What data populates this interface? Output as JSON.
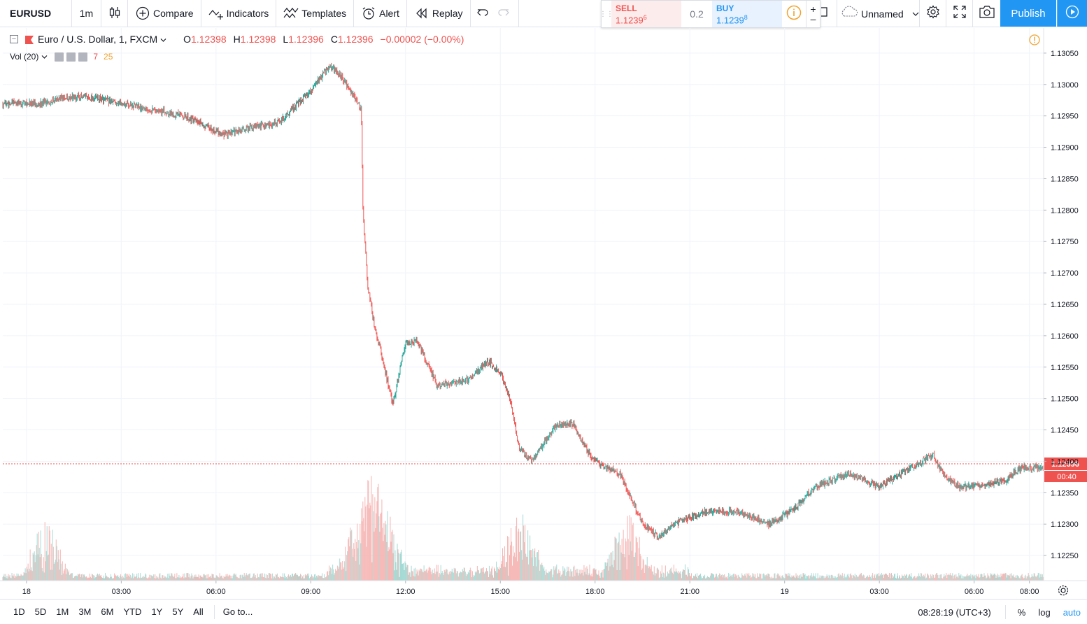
{
  "toolbar": {
    "symbol": "EURUSD",
    "interval": "1m",
    "compare": "Compare",
    "indicators": "Indicators",
    "templates": "Templates",
    "alert": "Alert",
    "replay": "Replay",
    "layout_name": "Unnamed",
    "publish": "Publish"
  },
  "trade": {
    "sell_label": "SELL",
    "sell_price_main": "1.1239",
    "sell_price_sup": "6",
    "spread": "0.2",
    "buy_label": "BUY",
    "buy_price_main": "1.1239",
    "buy_price_sup": "8",
    "plus": "+",
    "minus": "–"
  },
  "legend": {
    "title": "Euro / U.S. Dollar, 1, FXCM",
    "o_label": "O",
    "o": "1.12398",
    "h_label": "H",
    "h": "1.12398",
    "l_label": "L",
    "l": "1.12396",
    "c_label": "C",
    "c": "1.12396",
    "change": "−0.00002 (−0.00%)",
    "vol_label": "Vol (20)",
    "vol_value1": "7",
    "vol_value2": "25"
  },
  "bottom": {
    "ranges": [
      "1D",
      "5D",
      "1M",
      "3M",
      "6M",
      "YTD",
      "1Y",
      "5Y",
      "All"
    ],
    "goto": "Go to...",
    "clock": "08:28:19 (UTC+3)",
    "percent": "%",
    "log": "log",
    "auto": "auto"
  },
  "colors": {
    "up": "#26a69a",
    "down": "#ef5350",
    "grid": "#f0f3fa",
    "last_price": "#ef5350",
    "accent": "#2196f3"
  },
  "chart_data": {
    "type": "candlestick",
    "symbol": "EURUSD",
    "title": "Euro / U.S. Dollar, 1, FXCM",
    "interval": "1m",
    "ylim": [
      1.1221,
      1.1309
    ],
    "y_ticks": [
      "1.13050",
      "1.13000",
      "1.12950",
      "1.12900",
      "1.12850",
      "1.12800",
      "1.12750",
      "1.12700",
      "1.12650",
      "1.12600",
      "1.12550",
      "1.12500",
      "1.12450",
      "1.12400",
      "1.12350",
      "1.12300",
      "1.12250"
    ],
    "x_ticks": [
      "18",
      "03:00",
      "06:00",
      "09:00",
      "12:00",
      "15:00",
      "18:00",
      "21:00",
      "19",
      "03:00",
      "06:00",
      "08:00"
    ],
    "x_tick_hours": [
      0,
      3,
      6,
      9,
      12,
      15,
      18,
      21,
      24,
      27,
      30,
      31.75
    ],
    "x_range_hours": [
      -0.75,
      32.2
    ],
    "last_price": "1.12396",
    "last_price_value": 1.12396,
    "countdown": "00:40",
    "price_path_hours": [
      -0.75,
      -0.05,
      0.5,
      1.2,
      2.0,
      3.0,
      4.0,
      5.0,
      5.8,
      6.3,
      7.0,
      8.0,
      9.0,
      9.6,
      10.0,
      10.6,
      10.65,
      10.8,
      11.0,
      11.6,
      12.0,
      12.4,
      13.0,
      14.0,
      14.6,
      15.0,
      15.3,
      15.6,
      16.0,
      16.8,
      17.3,
      17.7,
      18.0,
      18.8,
      19.5,
      20.0,
      20.5,
      21.5,
      22.5,
      23.5,
      24.2,
      25.0,
      26.0,
      27.0,
      28.0,
      28.7,
      29.0,
      29.5,
      30.0,
      31.0,
      31.5,
      32.2
    ],
    "price_path_values": [
      1.1297,
      1.1297,
      1.1297,
      1.1298,
      1.1298,
      1.1297,
      1.1296,
      1.1295,
      1.1293,
      1.1292,
      1.1293,
      1.1294,
      1.1299,
      1.1303,
      1.1301,
      1.1296,
      1.128,
      1.1268,
      1.1262,
      1.1249,
      1.1259,
      1.1259,
      1.1252,
      1.1253,
      1.1256,
      1.1254,
      1.125,
      1.1242,
      1.124,
      1.1246,
      1.1246,
      1.1242,
      1.124,
      1.1238,
      1.123,
      1.1228,
      1.123,
      1.1232,
      1.1232,
      1.123,
      1.1232,
      1.1236,
      1.1238,
      1.1236,
      1.1239,
      1.1241,
      1.1238,
      1.1236,
      1.1236,
      1.1237,
      1.1239,
      1.1239
    ],
    "volume_spikes_hours": [
      0.6,
      10.6,
      10.9,
      11.3,
      15.6,
      19
    ],
    "volume_scale_note": "volume bars at bottom, largest near 10:30"
  }
}
